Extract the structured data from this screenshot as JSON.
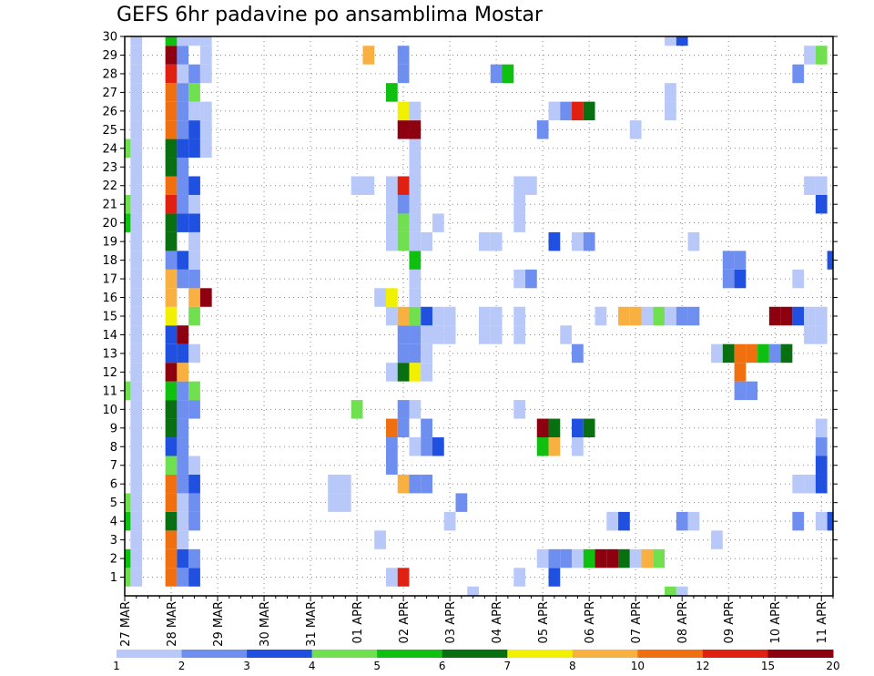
{
  "chart_data": {
    "type": "heatmap",
    "title": "GEFS 6hr padavine po ansamblima Mostar",
    "xlabel": "",
    "ylabel": "",
    "x_tick_labels": [
      "27 MAR",
      "28 MAR",
      "29 MAR",
      "30 MAR",
      "31 MAR",
      "01 APR",
      "02 APR",
      "03 APR",
      "04 APR",
      "05 APR",
      "06 APR",
      "07 APR",
      "08 APR",
      "09 APR",
      "10 APR",
      "11 APR"
    ],
    "y_tick_labels": [
      "1",
      "2",
      "3",
      "4",
      "5",
      "6",
      "7",
      "8",
      "9",
      "10",
      "11",
      "12",
      "13",
      "14",
      "15",
      "16",
      "17",
      "18",
      "19",
      "20",
      "21",
      "22",
      "23",
      "24",
      "25",
      "26",
      "27",
      "28",
      "29",
      "30"
    ],
    "xlim": [
      0,
      61
    ],
    "ylim": [
      0,
      30
    ],
    "grid": true,
    "legend": {
      "placement": "bottom",
      "labels": [
        "1",
        "2",
        "3",
        "4",
        "5",
        "6",
        "7",
        "8",
        "10",
        "12",
        "15",
        "20"
      ],
      "colors": [
        "#b8c8f8",
        "#6e8ef0",
        "#2050e0",
        "#70e050",
        "#10c010",
        "#087010",
        "#f0f000",
        "#f8b040",
        "#f07010",
        "#e02010",
        "#8c0010"
      ]
    },
    "cells": [
      [
        1,
        1,
        1
      ],
      [
        1,
        2,
        1
      ],
      [
        1,
        3,
        1
      ],
      [
        1,
        4,
        1
      ],
      [
        1,
        5,
        1
      ],
      [
        1,
        6,
        1
      ],
      [
        1,
        7,
        1
      ],
      [
        1,
        8,
        1
      ],
      [
        1,
        9,
        1
      ],
      [
        1,
        10,
        1
      ],
      [
        1,
        11,
        1
      ],
      [
        1,
        12,
        1
      ],
      [
        1,
        13,
        1
      ],
      [
        1,
        14,
        1
      ],
      [
        1,
        15,
        1
      ],
      [
        1,
        16,
        1
      ],
      [
        1,
        17,
        1
      ],
      [
        1,
        18,
        1
      ],
      [
        1,
        19,
        1
      ],
      [
        1,
        20,
        1
      ],
      [
        1,
        21,
        1
      ],
      [
        1,
        22,
        1
      ],
      [
        1,
        23,
        1
      ],
      [
        1,
        24,
        1
      ],
      [
        1,
        25,
        1
      ],
      [
        1,
        26,
        1
      ],
      [
        1,
        27,
        1
      ],
      [
        1,
        28,
        1
      ],
      [
        1,
        29,
        1
      ],
      [
        1,
        30,
        1
      ],
      [
        0,
        1,
        4
      ],
      [
        0,
        2,
        5
      ],
      [
        0,
        4,
        5
      ],
      [
        0,
        5,
        4
      ],
      [
        0,
        11,
        4
      ],
      [
        0,
        20,
        5
      ],
      [
        0,
        21,
        4
      ],
      [
        0,
        24,
        4
      ],
      [
        4,
        1,
        9
      ],
      [
        4,
        2,
        9
      ],
      [
        4,
        3,
        9
      ],
      [
        4,
        4,
        6
      ],
      [
        4,
        5,
        9
      ],
      [
        4,
        6,
        9
      ],
      [
        4,
        7,
        4
      ],
      [
        4,
        8,
        3
      ],
      [
        4,
        9,
        6
      ],
      [
        4,
        10,
        6
      ],
      [
        4,
        11,
        5
      ],
      [
        4,
        12,
        11
      ],
      [
        4,
        13,
        3
      ],
      [
        4,
        14,
        3
      ],
      [
        4,
        15,
        7
      ],
      [
        4,
        16,
        8
      ],
      [
        4,
        17,
        8
      ],
      [
        4,
        18,
        2
      ],
      [
        4,
        19,
        6
      ],
      [
        4,
        20,
        6
      ],
      [
        4,
        21,
        10
      ],
      [
        4,
        22,
        9
      ],
      [
        4,
        23,
        6
      ],
      [
        4,
        24,
        6
      ],
      [
        4,
        25,
        9
      ],
      [
        4,
        26,
        9
      ],
      [
        4,
        27,
        9
      ],
      [
        4,
        28,
        10
      ],
      [
        4,
        29,
        11
      ],
      [
        4,
        30,
        5
      ],
      [
        5,
        1,
        2
      ],
      [
        5,
        2,
        3
      ],
      [
        5,
        3,
        1
      ],
      [
        5,
        4,
        1
      ],
      [
        5,
        5,
        1
      ],
      [
        5,
        6,
        2
      ],
      [
        5,
        7,
        2
      ],
      [
        5,
        8,
        2
      ],
      [
        5,
        9,
        2
      ],
      [
        5,
        10,
        2
      ],
      [
        5,
        11,
        2
      ],
      [
        5,
        12,
        8
      ],
      [
        5,
        13,
        3
      ],
      [
        5,
        14,
        11
      ],
      [
        5,
        17,
        2
      ],
      [
        5,
        18,
        3
      ],
      [
        5,
        20,
        3
      ],
      [
        5,
        21,
        2
      ],
      [
        5,
        22,
        2
      ],
      [
        5,
        23,
        2
      ],
      [
        5,
        24,
        3
      ],
      [
        5,
        25,
        2
      ],
      [
        5,
        26,
        2
      ],
      [
        5,
        27,
        2
      ],
      [
        5,
        28,
        1
      ],
      [
        5,
        29,
        2
      ],
      [
        5,
        30,
        1
      ],
      [
        6,
        1,
        3
      ],
      [
        6,
        2,
        2
      ],
      [
        6,
        4,
        2
      ],
      [
        6,
        5,
        2
      ],
      [
        6,
        6,
        3
      ],
      [
        6,
        7,
        1
      ],
      [
        6,
        10,
        2
      ],
      [
        6,
        11,
        4
      ],
      [
        6,
        13,
        1
      ],
      [
        6,
        15,
        4
      ],
      [
        6,
        16,
        8
      ],
      [
        6,
        17,
        2
      ],
      [
        6,
        18,
        1
      ],
      [
        6,
        19,
        1
      ],
      [
        6,
        20,
        3
      ],
      [
        6,
        21,
        1
      ],
      [
        6,
        22,
        3
      ],
      [
        6,
        24,
        3
      ],
      [
        6,
        25,
        3
      ],
      [
        6,
        26,
        1
      ],
      [
        6,
        27,
        4
      ],
      [
        6,
        28,
        2
      ],
      [
        6,
        30,
        1
      ],
      [
        7,
        16,
        11
      ],
      [
        7,
        24,
        1
      ],
      [
        7,
        25,
        1
      ],
      [
        7,
        26,
        1
      ],
      [
        7,
        28,
        1
      ],
      [
        7,
        29,
        1
      ],
      [
        7,
        30,
        1
      ],
      [
        18,
        5,
        1
      ],
      [
        18,
        6,
        1
      ],
      [
        19,
        5,
        1
      ],
      [
        19,
        6,
        1
      ],
      [
        20,
        10,
        4
      ],
      [
        20,
        22,
        1
      ],
      [
        21,
        22,
        1
      ],
      [
        21,
        29,
        8
      ],
      [
        22,
        3,
        1
      ],
      [
        22,
        16,
        1
      ],
      [
        23,
        1,
        1
      ],
      [
        23,
        7,
        2
      ],
      [
        23,
        8,
        2
      ],
      [
        23,
        9,
        9
      ],
      [
        23,
        12,
        1
      ],
      [
        23,
        15,
        1
      ],
      [
        23,
        16,
        7
      ],
      [
        23,
        19,
        1
      ],
      [
        23,
        20,
        1
      ],
      [
        23,
        21,
        1
      ],
      [
        23,
        22,
        1
      ],
      [
        23,
        27,
        5
      ],
      [
        24,
        1,
        10
      ],
      [
        24,
        6,
        8
      ],
      [
        24,
        9,
        2
      ],
      [
        24,
        10,
        2
      ],
      [
        24,
        12,
        6
      ],
      [
        24,
        13,
        2
      ],
      [
        24,
        14,
        2
      ],
      [
        24,
        15,
        8
      ],
      [
        24,
        19,
        4
      ],
      [
        24,
        20,
        4
      ],
      [
        24,
        21,
        2
      ],
      [
        24,
        22,
        10
      ],
      [
        24,
        25,
        11
      ],
      [
        24,
        26,
        7
      ],
      [
        24,
        28,
        2
      ],
      [
        24,
        29,
        2
      ],
      [
        25,
        6,
        2
      ],
      [
        25,
        8,
        1
      ],
      [
        25,
        10,
        1
      ],
      [
        25,
        12,
        7
      ],
      [
        25,
        13,
        2
      ],
      [
        25,
        14,
        2
      ],
      [
        25,
        15,
        4
      ],
      [
        25,
        16,
        1
      ],
      [
        25,
        17,
        1
      ],
      [
        25,
        18,
        5
      ],
      [
        25,
        19,
        1
      ],
      [
        25,
        20,
        1
      ],
      [
        25,
        21,
        1
      ],
      [
        25,
        22,
        1
      ],
      [
        25,
        23,
        1
      ],
      [
        25,
        24,
        1
      ],
      [
        25,
        25,
        11
      ],
      [
        25,
        26,
        1
      ],
      [
        26,
        6,
        2
      ],
      [
        26,
        8,
        2
      ],
      [
        26,
        9,
        2
      ],
      [
        26,
        12,
        1
      ],
      [
        26,
        13,
        1
      ],
      [
        26,
        14,
        1
      ],
      [
        26,
        15,
        3
      ],
      [
        26,
        19,
        1
      ],
      [
        27,
        8,
        3
      ],
      [
        27,
        14,
        1
      ],
      [
        27,
        15,
        1
      ],
      [
        27,
        20,
        1
      ],
      [
        28,
        4,
        1
      ],
      [
        28,
        14,
        1
      ],
      [
        28,
        15,
        1
      ],
      [
        29,
        5,
        2
      ],
      [
        30,
        0,
        1
      ],
      [
        31,
        14,
        1
      ],
      [
        31,
        15,
        1
      ],
      [
        31,
        19,
        1
      ],
      [
        32,
        14,
        1
      ],
      [
        32,
        15,
        1
      ],
      [
        32,
        19,
        1
      ],
      [
        32,
        28,
        2
      ],
      [
        33,
        28,
        5
      ],
      [
        34,
        1,
        1
      ],
      [
        34,
        10,
        1
      ],
      [
        34,
        14,
        1
      ],
      [
        34,
        15,
        1
      ],
      [
        34,
        17,
        1
      ],
      [
        34,
        20,
        1
      ],
      [
        34,
        21,
        1
      ],
      [
        34,
        22,
        1
      ],
      [
        35,
        17,
        2
      ],
      [
        35,
        22,
        1
      ],
      [
        36,
        2,
        1
      ],
      [
        36,
        8,
        5
      ],
      [
        36,
        9,
        11
      ],
      [
        36,
        25,
        2
      ],
      [
        37,
        1,
        3
      ],
      [
        37,
        2,
        2
      ],
      [
        37,
        8,
        8
      ],
      [
        37,
        9,
        6
      ],
      [
        37,
        19,
        3
      ],
      [
        37,
        26,
        1
      ],
      [
        38,
        2,
        2
      ],
      [
        38,
        14,
        1
      ],
      [
        38,
        26,
        2
      ],
      [
        39,
        2,
        1
      ],
      [
        39,
        8,
        1
      ],
      [
        39,
        9,
        3
      ],
      [
        39,
        13,
        2
      ],
      [
        39,
        19,
        1
      ],
      [
        39,
        26,
        10
      ],
      [
        40,
        2,
        5
      ],
      [
        40,
        9,
        6
      ],
      [
        40,
        19,
        2
      ],
      [
        40,
        26,
        6
      ],
      [
        41,
        2,
        11
      ],
      [
        41,
        15,
        1
      ],
      [
        42,
        2,
        11
      ],
      [
        42,
        4,
        1
      ],
      [
        43,
        2,
        6
      ],
      [
        43,
        4,
        3
      ],
      [
        43,
        15,
        8
      ],
      [
        44,
        2,
        1
      ],
      [
        44,
        15,
        8
      ],
      [
        44,
        25,
        1
      ],
      [
        45,
        2,
        8
      ],
      [
        45,
        15,
        1
      ],
      [
        46,
        2,
        4
      ],
      [
        46,
        15,
        4
      ],
      [
        47,
        0,
        4
      ],
      [
        47,
        15,
        1
      ],
      [
        47,
        26,
        1
      ],
      [
        47,
        27,
        1
      ],
      [
        47,
        30,
        1
      ],
      [
        48,
        0,
        1
      ],
      [
        48,
        4,
        2
      ],
      [
        48,
        15,
        2
      ],
      [
        48,
        30,
        3
      ],
      [
        49,
        4,
        1
      ],
      [
        49,
        15,
        2
      ],
      [
        49,
        19,
        1
      ],
      [
        51,
        3,
        1
      ],
      [
        51,
        13,
        1
      ],
      [
        52,
        13,
        6
      ],
      [
        52,
        17,
        2
      ],
      [
        52,
        18,
        2
      ],
      [
        53,
        11,
        2
      ],
      [
        53,
        12,
        9
      ],
      [
        53,
        13,
        9
      ],
      [
        53,
        17,
        3
      ],
      [
        53,
        18,
        2
      ],
      [
        54,
        11,
        2
      ],
      [
        54,
        13,
        9
      ],
      [
        55,
        13,
        5
      ],
      [
        56,
        13,
        2
      ],
      [
        56,
        15,
        11
      ],
      [
        57,
        13,
        6
      ],
      [
        57,
        15,
        11
      ],
      [
        58,
        4,
        2
      ],
      [
        58,
        6,
        1
      ],
      [
        58,
        15,
        3
      ],
      [
        58,
        17,
        1
      ],
      [
        58,
        28,
        2
      ],
      [
        59,
        6,
        1
      ],
      [
        59,
        14,
        1
      ],
      [
        59,
        15,
        1
      ],
      [
        59,
        22,
        1
      ],
      [
        59,
        29,
        1
      ],
      [
        60,
        4,
        1
      ],
      [
        60,
        6,
        3
      ],
      [
        60,
        7,
        3
      ],
      [
        60,
        8,
        2
      ],
      [
        60,
        9,
        1
      ],
      [
        60,
        14,
        1
      ],
      [
        60,
        15,
        1
      ],
      [
        60,
        21,
        3
      ],
      [
        60,
        22,
        1
      ],
      [
        60,
        29,
        4
      ],
      [
        61,
        4,
        3
      ],
      [
        61,
        18,
        3
      ]
    ]
  }
}
